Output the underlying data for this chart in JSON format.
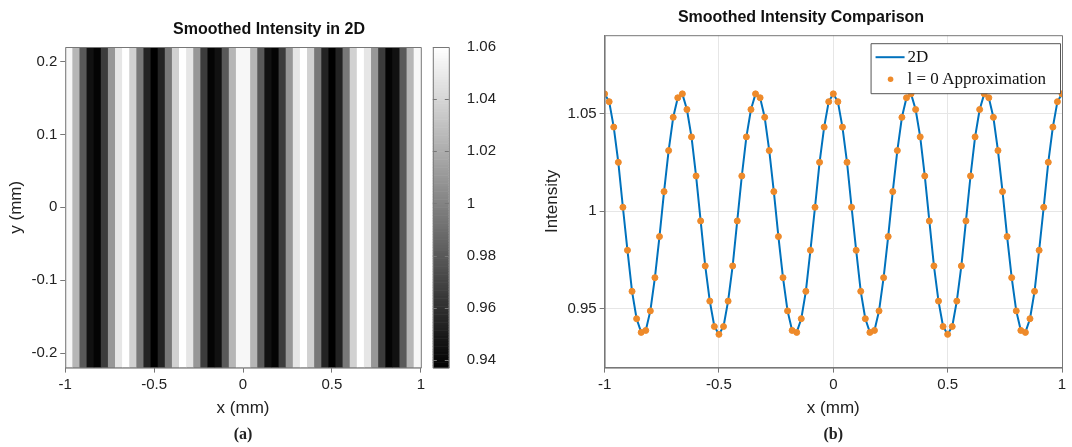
{
  "chart_data": [
    {
      "type": "heatmap",
      "title": "Smoothed Intensity in 2D",
      "xlabel": "x (mm)",
      "ylabel": "y (mm)",
      "x": [
        -0.98,
        -0.94,
        -0.9,
        -0.86,
        -0.82,
        -0.78,
        -0.74,
        -0.7,
        -0.66,
        -0.62,
        -0.58,
        -0.54,
        -0.5,
        -0.46,
        -0.42,
        -0.38,
        -0.34,
        -0.3,
        -0.26,
        -0.22,
        -0.18,
        -0.14,
        -0.1,
        -0.06,
        -0.02,
        0.02,
        0.06,
        0.1,
        0.14,
        0.18,
        0.22,
        0.26,
        0.3,
        0.34,
        0.38,
        0.42,
        0.46,
        0.5,
        0.54,
        0.58,
        0.62,
        0.66,
        0.7,
        0.74,
        0.78,
        0.82,
        0.86,
        0.9,
        0.94,
        0.98
      ],
      "cells": [
        [
          1.056,
          1.025,
          0.98,
          0.945,
          0.939,
          0.966,
          1.01,
          1.048,
          1.06,
          1.038,
          0.995,
          0.954,
          0.937,
          0.954,
          0.995,
          1.038,
          1.06,
          1.048,
          1.01,
          0.966,
          0.939,
          0.945,
          0.98,
          1.025,
          1.056,
          1.056,
          1.025,
          0.98,
          0.945,
          0.939,
          0.966,
          1.01,
          1.048,
          1.06,
          1.038,
          0.995,
          0.954,
          0.937,
          0.954,
          0.995,
          1.038,
          1.06,
          1.048,
          1.01,
          0.966,
          0.939,
          0.945,
          0.98,
          1.025,
          1.056
        ]
      ],
      "xlim": [
        -1,
        1
      ],
      "xticks": [
        -1,
        -0.5,
        0,
        0.5,
        1
      ],
      "ylim": [
        -0.22,
        0.22
      ],
      "yticks": [
        -0.2,
        -0.1,
        0,
        0.1,
        0.2
      ],
      "clim": [
        0.937,
        1.06
      ],
      "cticks": [
        0.94,
        0.96,
        0.98,
        1,
        1.02,
        1.04,
        1.06
      ],
      "annotations": [
        "(a)"
      ]
    },
    {
      "type": "line",
      "title": "Smoothed Intensity Comparison",
      "xlabel": "x (mm)",
      "ylabel": "Intensity",
      "x": [
        -1,
        -0.98,
        -0.96,
        -0.94,
        -0.92,
        -0.9,
        -0.88,
        -0.86,
        -0.84,
        -0.82,
        -0.8,
        -0.78,
        -0.76,
        -0.74,
        -0.72,
        -0.7,
        -0.68,
        -0.66,
        -0.64,
        -0.62,
        -0.6,
        -0.58,
        -0.56,
        -0.54,
        -0.52,
        -0.5,
        -0.48,
        -0.46,
        -0.44,
        -0.42,
        -0.4,
        -0.38,
        -0.36,
        -0.34,
        -0.32,
        -0.3,
        -0.28,
        -0.26,
        -0.24,
        -0.22,
        -0.2,
        -0.18,
        -0.16,
        -0.14,
        -0.12,
        -0.1,
        -0.08,
        -0.06,
        -0.04,
        -0.02,
        0,
        0.02,
        0.04,
        0.06,
        0.08,
        0.1,
        0.12,
        0.14,
        0.16,
        0.18,
        0.2,
        0.22,
        0.24,
        0.26,
        0.28,
        0.3,
        0.32,
        0.34,
        0.36,
        0.38,
        0.4,
        0.42,
        0.44,
        0.46,
        0.48,
        0.5,
        0.52,
        0.54,
        0.56,
        0.58,
        0.6,
        0.62,
        0.64,
        0.66,
        0.68,
        0.7,
        0.72,
        0.74,
        0.76,
        0.78,
        0.8,
        0.82,
        0.84,
        0.86,
        0.88,
        0.9,
        0.92,
        0.94,
        0.96,
        0.98,
        1
      ],
      "series": [
        {
          "name": "2D",
          "type": "line",
          "marker": "none",
          "color": "#0072bd",
          "values": [
            1.06,
            1.056,
            1.043,
            1.025,
            1.002,
            0.98,
            0.959,
            0.945,
            0.938,
            0.939,
            0.949,
            0.966,
            0.987,
            1.01,
            1.031,
            1.048,
            1.058,
            1.06,
            1.052,
            1.038,
            1.018,
            0.995,
            0.972,
            0.954,
            0.941,
            0.937,
            0.941,
            0.954,
            0.972,
            0.995,
            1.018,
            1.038,
            1.052,
            1.06,
            1.058,
            1.048,
            1.031,
            1.01,
            0.987,
            0.966,
            0.949,
            0.939,
            0.938,
            0.945,
            0.959,
            0.98,
            1.002,
            1.025,
            1.043,
            1.056,
            1.06,
            1.056,
            1.043,
            1.025,
            1.002,
            0.98,
            0.959,
            0.945,
            0.938,
            0.939,
            0.949,
            0.966,
            0.987,
            1.01,
            1.031,
            1.048,
            1.058,
            1.06,
            1.052,
            1.038,
            1.018,
            0.995,
            0.972,
            0.954,
            0.941,
            0.937,
            0.941,
            0.954,
            0.972,
            0.995,
            1.018,
            1.038,
            1.052,
            1.06,
            1.058,
            1.048,
            1.031,
            1.01,
            0.987,
            0.966,
            0.949,
            0.939,
            0.938,
            0.945,
            0.959,
            0.98,
            1.002,
            1.025,
            1.043,
            1.056,
            1.06
          ]
        },
        {
          "name": "l = 0 Approximation",
          "type": "scatter",
          "marker": "circle",
          "color": "#ee8a2a",
          "values": [
            1.06,
            1.056,
            1.043,
            1.025,
            1.002,
            0.98,
            0.959,
            0.945,
            0.938,
            0.939,
            0.949,
            0.966,
            0.987,
            1.01,
            1.031,
            1.048,
            1.058,
            1.06,
            1.052,
            1.038,
            1.018,
            0.995,
            0.972,
            0.954,
            0.941,
            0.937,
            0.941,
            0.954,
            0.972,
            0.995,
            1.018,
            1.038,
            1.052,
            1.06,
            1.058,
            1.048,
            1.031,
            1.01,
            0.987,
            0.966,
            0.949,
            0.939,
            0.938,
            0.945,
            0.959,
            0.98,
            1.002,
            1.025,
            1.043,
            1.056,
            1.06,
            1.056,
            1.043,
            1.025,
            1.002,
            0.98,
            0.959,
            0.945,
            0.938,
            0.939,
            0.949,
            0.966,
            0.987,
            1.01,
            1.031,
            1.048,
            1.058,
            1.06,
            1.052,
            1.038,
            1.018,
            0.995,
            0.972,
            0.954,
            0.941,
            0.937,
            0.941,
            0.954,
            0.972,
            0.995,
            1.018,
            1.038,
            1.052,
            1.06,
            1.058,
            1.048,
            1.031,
            1.01,
            0.987,
            0.966,
            0.949,
            0.939,
            0.938,
            0.945,
            0.959,
            0.98,
            1.002,
            1.025,
            1.043,
            1.056,
            1.06
          ]
        }
      ],
      "xlim": [
        -1,
        1
      ],
      "xticks": [
        -1,
        -0.5,
        0,
        0.5,
        1
      ],
      "ylim": [
        0.92,
        1.09
      ],
      "yticks": [
        0.95,
        1,
        1.05
      ],
      "grid": true,
      "legend": "top right",
      "annotations": [
        "(b)"
      ]
    }
  ]
}
